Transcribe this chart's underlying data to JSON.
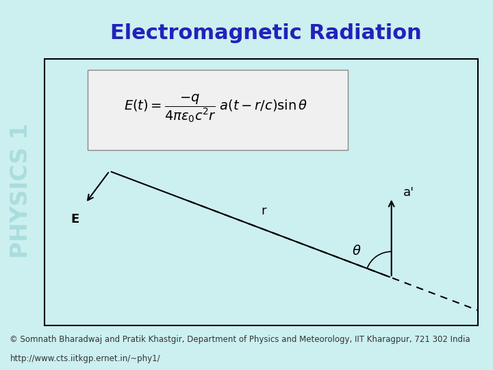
{
  "title": "Electromagnetic Radiation",
  "title_color": "#2222BB",
  "title_fontsize": 22,
  "bg_color": "#CCEFEF",
  "sidebar_text": "PHYSICS 1",
  "sidebar_text_color": "#AADDDD",
  "formula": "$E(t) = \\dfrac{-q}{4\\pi\\epsilon_0 c^2 r}\\; a(t - r/c)\\sin\\theta$",
  "formula_fontsize": 14,
  "footer_line1": "© Somnath Bharadwaj and Pratik Khastgir, Department of Physics and Meteorology, IIT Kharagpur, 721 302 India",
  "footer_line2": "http://www.cts.iitkgp.ernet.in/~phy1/",
  "footer_color": "#333333",
  "footer_fontsize": 8.5,
  "footer_bg": "#C8E8C8",
  "frame_bg": "#CCEFEF",
  "diagram_box_color": "#F0F0F0",
  "line_color": "#000000"
}
